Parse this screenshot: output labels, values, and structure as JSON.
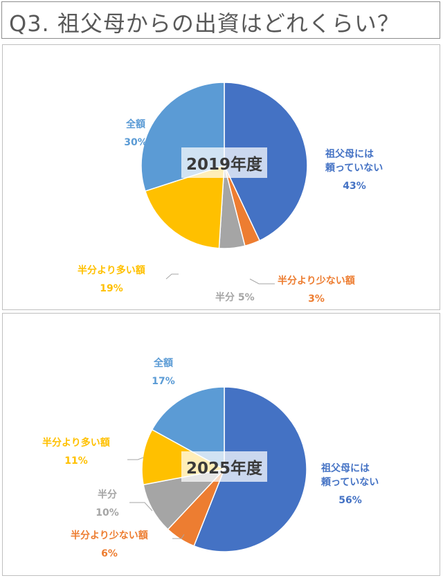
{
  "title": "Q3. 祖父母からの出資はどれくらい？",
  "chart_data": [
    {
      "type": "pie",
      "center_label": "2019年度",
      "slices": [
        {
          "name": "祖父母には頼っていない",
          "label_lines": [
            "祖父母には",
            "頼っていない"
          ],
          "value": 43,
          "value_label": "43%",
          "color": "#4472C4"
        },
        {
          "name": "半分より少ない額",
          "label_lines": [
            "半分より少ない額"
          ],
          "value": 3,
          "value_label": "3%",
          "color": "#ED7D31"
        },
        {
          "name": "半分",
          "label_lines": [
            "半分"
          ],
          "value": 5,
          "value_label": "5%",
          "color": "#A5A5A5"
        },
        {
          "name": "半分より多い額",
          "label_lines": [
            "半分より多い額"
          ],
          "value": 19,
          "value_label": "19%",
          "color": "#FFC000"
        },
        {
          "name": "全額",
          "label_lines": [
            "全額"
          ],
          "value": 30,
          "value_label": "30%",
          "color": "#5B9BD5"
        }
      ]
    },
    {
      "type": "pie",
      "center_label": "2025年度",
      "slices": [
        {
          "name": "祖父母には頼っていない",
          "label_lines": [
            "祖父母には",
            "頼っていない"
          ],
          "value": 56,
          "value_label": "56%",
          "color": "#4472C4"
        },
        {
          "name": "半分より少ない額",
          "label_lines": [
            "半分より少ない額"
          ],
          "value": 6,
          "value_label": "6%",
          "color": "#ED7D31"
        },
        {
          "name": "半分",
          "label_lines": [
            "半分"
          ],
          "value": 10,
          "value_label": "10%",
          "color": "#A5A5A5"
        },
        {
          "name": "半分より多い額",
          "label_lines": [
            "半分より多い額"
          ],
          "value": 11,
          "value_label": "11%",
          "color": "#FFC000"
        },
        {
          "name": "全額",
          "label_lines": [
            "全額"
          ],
          "value": 17,
          "value_label": "17%",
          "color": "#5B9BD5"
        }
      ]
    }
  ]
}
